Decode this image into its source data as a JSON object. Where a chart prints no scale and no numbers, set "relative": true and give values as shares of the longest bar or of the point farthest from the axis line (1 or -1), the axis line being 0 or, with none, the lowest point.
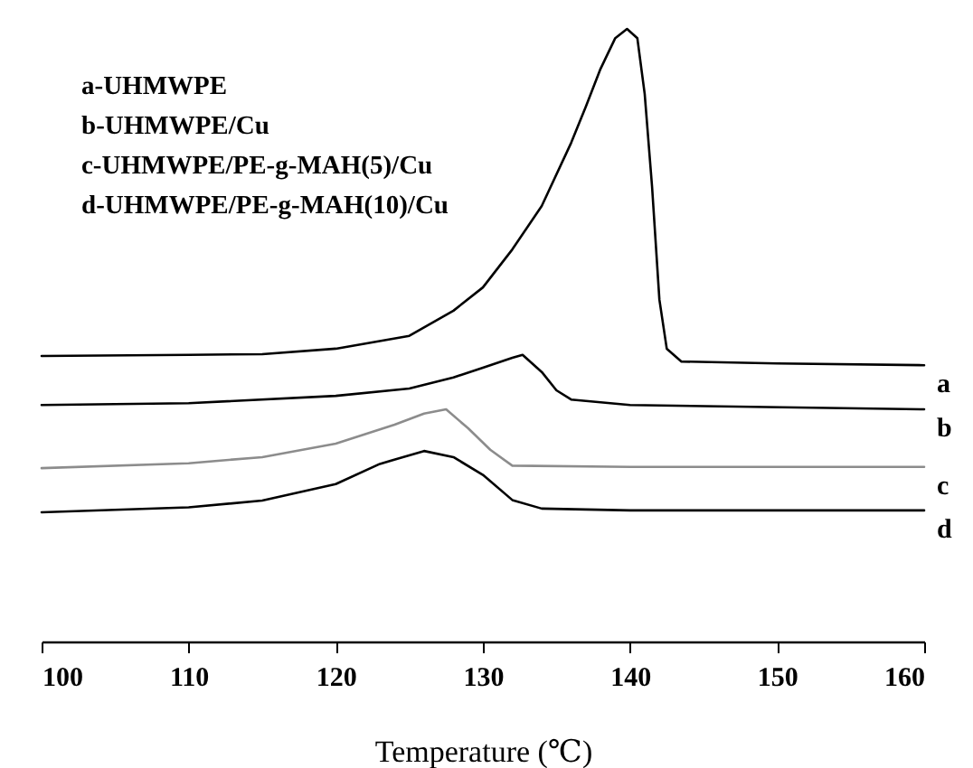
{
  "chart_data": {
    "type": "line",
    "relative": true,
    "xlabel": "Temperature (℃)",
    "xlim": [
      100,
      160
    ],
    "xticks": [
      100,
      110,
      120,
      130,
      140,
      150,
      160
    ],
    "grid": false,
    "legend": false,
    "line_style": "solid",
    "marker": "none",
    "annotations": [
      "a-UHMWPE",
      "b-UHMWPE/Cu",
      "c-UHMWPE/PE-g-MAH(5)/Cu",
      "d-UHMWPE/PE-g-MAH(10)/Cu"
    ],
    "series": [
      {
        "name": "a",
        "color": "#000000",
        "x": [
          100,
          110,
          115,
          120,
          125,
          128,
          130,
          132,
          134,
          136,
          137,
          138,
          139,
          139.8,
          140.5,
          141,
          141.5,
          142,
          142.5,
          143.5,
          150,
          160
        ],
        "values": [
          0.466,
          0.468,
          0.469,
          0.478,
          0.499,
          0.54,
          0.578,
          0.64,
          0.711,
          0.814,
          0.873,
          0.935,
          0.985,
          1.0,
          0.985,
          0.894,
          0.743,
          0.558,
          0.478,
          0.457,
          0.454,
          0.451
        ]
      },
      {
        "name": "b",
        "color": "#000000",
        "x": [
          100,
          110,
          120,
          125,
          128,
          130,
          132,
          132.7,
          134,
          135,
          136,
          140,
          160
        ],
        "values": [
          0.386,
          0.389,
          0.401,
          0.413,
          0.431,
          0.447,
          0.463,
          0.468,
          0.44,
          0.41,
          0.395,
          0.386,
          0.379
        ]
      },
      {
        "name": "c",
        "color": "#8c8c8c",
        "x": [
          100,
          110,
          115,
          120,
          124,
          126,
          127.5,
          129,
          130.5,
          132,
          140,
          160
        ],
        "values": [
          0.283,
          0.291,
          0.301,
          0.323,
          0.354,
          0.372,
          0.379,
          0.348,
          0.313,
          0.287,
          0.285,
          0.285
        ]
      },
      {
        "name": "d",
        "color": "#000000",
        "x": [
          100,
          110,
          115,
          120,
          123,
          126,
          128,
          130,
          132,
          134,
          140,
          160
        ],
        "values": [
          0.211,
          0.219,
          0.23,
          0.257,
          0.29,
          0.311,
          0.301,
          0.272,
          0.231,
          0.217,
          0.214,
          0.214
        ]
      }
    ]
  }
}
